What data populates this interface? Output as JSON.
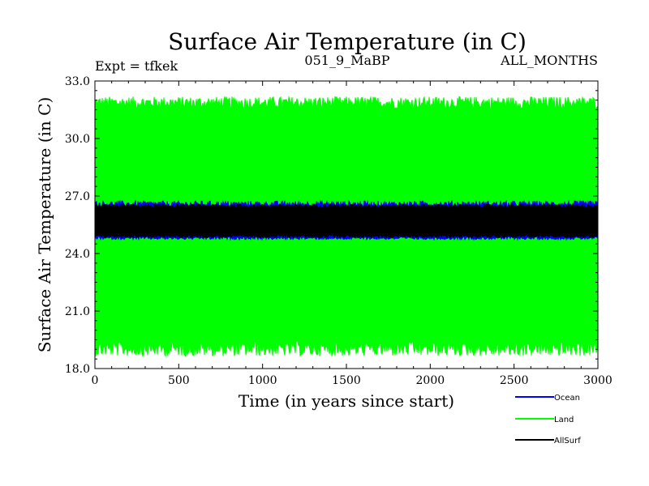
{
  "chart_data": {
    "type": "line",
    "title": "Surface Air Temperature (in C)",
    "subtitle_left": "Expt = tfkek",
    "subtitle_center": "051_9_MaBP",
    "subtitle_right": "ALL_MONTHS",
    "xlabel": "Time (in years since start)",
    "ylabel": "Surface Air Temperature (in C)",
    "xlim": [
      0,
      3000
    ],
    "ylim": [
      18.0,
      33.0
    ],
    "x_ticks": [
      0,
      500,
      1000,
      1500,
      2000,
      2500,
      3000
    ],
    "x_tick_labels": [
      "0",
      "500",
      "1000",
      "1500",
      "2000",
      "2500",
      "3000"
    ],
    "y_ticks": [
      18.0,
      21.0,
      24.0,
      27.0,
      30.0,
      33.0
    ],
    "y_tick_labels": [
      "18.0",
      "21.0",
      "24.0",
      "27.0",
      "30.0",
      "33.0"
    ],
    "grid": false,
    "legend_placement": "bottom-right",
    "series": [
      {
        "name": "Land",
        "color": "#00ff00",
        "seasonal_min": 19.0,
        "seasonal_max": 31.9,
        "extreme_min": 18.5,
        "extreme_max": 32.3
      },
      {
        "name": "Ocean",
        "color": "#0000ff",
        "seasonal_min": 24.8,
        "seasonal_max": 26.6,
        "extreme_min": 24.7,
        "extreme_max": 26.8
      },
      {
        "name": "AllSurf",
        "color": "#000000",
        "seasonal_min": 24.9,
        "seasonal_max": 26.5,
        "extreme_min": 24.8,
        "extreme_max": 26.6
      }
    ],
    "legend": [
      {
        "name": "Ocean",
        "color": "#0000ff"
      },
      {
        "name": "Land",
        "color": "#00ff00"
      },
      {
        "name": "AllSurf",
        "color": "#000000"
      }
    ]
  }
}
